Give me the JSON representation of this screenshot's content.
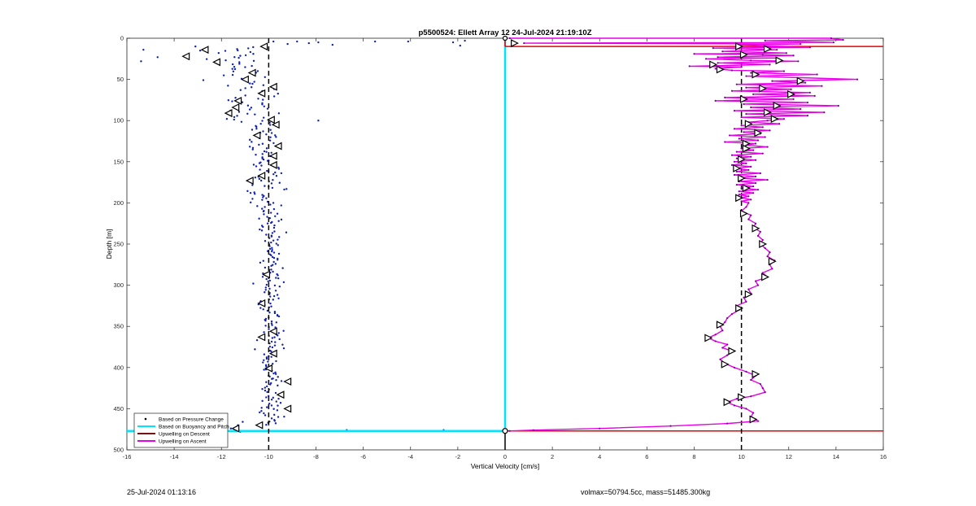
{
  "chart_data": {
    "type": "scatter",
    "title": "p5500524: Ellett Array 12 24-Jul-2024 21:19:10Z",
    "xlabel": "Vertical Velocity [cm/s]",
    "ylabel": "Depth [m]",
    "xlim": [
      -16,
      16
    ],
    "ylim": [
      0,
      500
    ],
    "y_reversed": true,
    "grid": false,
    "x_ticks": [
      -16,
      -14,
      -12,
      -10,
      -8,
      -6,
      -4,
      -2,
      0,
      2,
      4,
      6,
      8,
      10,
      12,
      14,
      16
    ],
    "y_ticks": [
      0,
      50,
      100,
      150,
      200,
      250,
      300,
      350,
      400,
      450,
      500
    ],
    "legend_position": "bottom-left",
    "legend": [
      {
        "label": "Based on Pressure Change",
        "style": "dot",
        "color": "#000000"
      },
      {
        "label": "Based on Buoyancy and Pitch",
        "style": "line",
        "color": "#00e5ff"
      },
      {
        "label": "Upwelling on Descent",
        "style": "line",
        "color": "#7a1010"
      },
      {
        "label": "Upwelling on Ascent",
        "style": "line",
        "color": "#e600e6"
      }
    ],
    "reference_lines": [
      {
        "x": -10,
        "style": "dashed",
        "color": "#000000"
      },
      {
        "x": 10,
        "style": "dashed",
        "color": "#000000"
      },
      {
        "x": 0,
        "style": "solid",
        "color": "#000000",
        "ymin": 475,
        "ymax": 500
      }
    ],
    "red_lines": [
      {
        "y": 10,
        "x0": 0,
        "x1": 16
      },
      {
        "y": 477,
        "x0": 0,
        "x1": 16
      }
    ],
    "buoyancy_pitch": {
      "color": "#00e5ff",
      "points": [
        [
          0,
          0
        ],
        [
          0,
          477
        ],
        [
          -16,
          477
        ]
      ]
    },
    "descent_outliers": [
      [
        -15.3,
        14
      ],
      [
        -15.4,
        28
      ],
      [
        -14.7,
        23
      ],
      [
        -13.1,
        10
      ],
      [
        -12.9,
        15
      ],
      [
        -12.6,
        13
      ],
      [
        -9.8,
        4
      ],
      [
        -9.2,
        7
      ],
      [
        -8.8,
        4
      ],
      [
        -8.3,
        6
      ],
      [
        -7.9,
        5
      ],
      [
        -7.3,
        8
      ],
      [
        -5.5,
        4
      ],
      [
        -4.1,
        4
      ],
      [
        -1.7,
        3
      ],
      [
        -2.2,
        5
      ],
      [
        -1.9,
        9
      ],
      [
        -7.9,
        100
      ],
      [
        -6.7,
        476
      ],
      [
        -2.6,
        476
      ],
      [
        -1.9,
        477
      ],
      [
        -11.1,
        466
      ],
      [
        -11.3,
        470
      ],
      [
        -11.6,
        474
      ],
      [
        -11.2,
        478
      ]
    ],
    "descent_markers": [
      [
        -10.2,
        10
      ],
      [
        -12.7,
        14
      ],
      [
        -13.5,
        22
      ],
      [
        -12.2,
        29
      ],
      [
        -10.7,
        42
      ],
      [
        -11.0,
        50
      ],
      [
        -9.8,
        59
      ],
      [
        -10.3,
        67
      ],
      [
        -11.3,
        76
      ],
      [
        -11.4,
        84
      ],
      [
        -11.7,
        91
      ],
      [
        -9.9,
        99
      ],
      [
        -9.7,
        105
      ],
      [
        -10.5,
        118
      ],
      [
        -9.6,
        131
      ],
      [
        -9.8,
        143
      ],
      [
        -9.8,
        154
      ],
      [
        -10.3,
        167
      ],
      [
        -10.8,
        173
      ],
      [
        -10.1,
        287
      ],
      [
        -10.3,
        322
      ],
      [
        -9.8,
        356
      ],
      [
        -10.3,
        363
      ],
      [
        -9.8,
        383
      ],
      [
        -10.0,
        401
      ],
      [
        -9.2,
        417
      ],
      [
        -9.5,
        433
      ],
      [
        -9.2,
        450
      ],
      [
        -10.4,
        470
      ],
      [
        -11.4,
        474
      ]
    ],
    "ascent_markers": [
      [
        0.4,
        6
      ],
      [
        9.9,
        10
      ],
      [
        11.1,
        13
      ],
      [
        10.1,
        20
      ],
      [
        11.6,
        27
      ],
      [
        8.8,
        32
      ],
      [
        9.1,
        38
      ],
      [
        10.6,
        44
      ],
      [
        12.5,
        52
      ],
      [
        10.9,
        61
      ],
      [
        12.1,
        68
      ],
      [
        10.1,
        74
      ],
      [
        11.5,
        82
      ],
      [
        11.1,
        90
      ],
      [
        11.4,
        98
      ],
      [
        10.3,
        104
      ],
      [
        10.7,
        115
      ],
      [
        10.2,
        128
      ],
      [
        10.2,
        134
      ],
      [
        10.0,
        147
      ],
      [
        9.8,
        158
      ],
      [
        10.0,
        170
      ],
      [
        10.2,
        182
      ],
      [
        9.9,
        194
      ],
      [
        10.1,
        213
      ],
      [
        10.6,
        231
      ],
      [
        10.9,
        250
      ],
      [
        11.3,
        271
      ],
      [
        11.0,
        290
      ],
      [
        10.3,
        311
      ],
      [
        9.9,
        328
      ],
      [
        9.1,
        348
      ],
      [
        8.6,
        364
      ],
      [
        9.6,
        380
      ],
      [
        9.3,
        396
      ],
      [
        10.6,
        408
      ],
      [
        10.0,
        436
      ],
      [
        9.4,
        442
      ],
      [
        10.5,
        463
      ],
      [
        0,
        477
      ]
    ],
    "ascent_profile": [
      [
        0.2,
        0
      ],
      [
        13.8,
        0
      ],
      [
        14.3,
        2
      ],
      [
        11.0,
        3
      ],
      [
        13.9,
        5
      ],
      [
        0.8,
        6
      ],
      [
        12.5,
        7
      ],
      [
        9.8,
        8
      ],
      [
        12.9,
        11
      ],
      [
        8.8,
        12
      ],
      [
        11.5,
        14
      ],
      [
        9.2,
        16
      ],
      [
        11.9,
        18
      ],
      [
        8.0,
        19
      ],
      [
        10.9,
        20
      ],
      [
        12.2,
        21
      ],
      [
        9.0,
        23
      ],
      [
        11.5,
        24
      ],
      [
        8.5,
        25
      ],
      [
        10.4,
        27
      ],
      [
        12.4,
        28
      ],
      [
        9.0,
        30
      ],
      [
        11.2,
        32
      ],
      [
        7.8,
        34
      ],
      [
        10.0,
        35
      ],
      [
        8.9,
        37
      ],
      [
        9.6,
        39
      ],
      [
        11.8,
        40
      ],
      [
        10.4,
        42
      ],
      [
        13.2,
        44
      ],
      [
        10.2,
        46
      ],
      [
        14.9,
        50
      ],
      [
        11.3,
        52
      ],
      [
        12.7,
        54
      ],
      [
        9.8,
        56
      ],
      [
        13.4,
        58
      ],
      [
        10.2,
        60
      ],
      [
        12.1,
        62
      ],
      [
        9.6,
        64
      ],
      [
        12.9,
        66
      ],
      [
        10.5,
        68
      ],
      [
        13.1,
        70
      ],
      [
        9.3,
        72
      ],
      [
        12.2,
        74
      ],
      [
        8.9,
        76
      ],
      [
        12.8,
        78
      ],
      [
        10.1,
        80
      ],
      [
        14.1,
        82
      ],
      [
        10.4,
        84
      ],
      [
        12.5,
        86
      ],
      [
        9.7,
        88
      ],
      [
        13.5,
        90
      ],
      [
        10.2,
        92
      ],
      [
        12.8,
        94
      ],
      [
        10.0,
        96
      ],
      [
        11.8,
        98
      ],
      [
        11.1,
        100
      ],
      [
        10.3,
        102
      ],
      [
        11.6,
        104
      ],
      [
        10.0,
        106
      ],
      [
        10.9,
        108
      ],
      [
        9.7,
        110
      ],
      [
        11.2,
        112
      ],
      [
        10.1,
        114
      ],
      [
        10.8,
        116
      ],
      [
        9.5,
        118
      ],
      [
        11.0,
        120
      ],
      [
        9.9,
        122
      ],
      [
        10.7,
        124
      ],
      [
        9.3,
        126
      ],
      [
        10.6,
        128
      ],
      [
        10.2,
        130
      ],
      [
        11.1,
        132
      ],
      [
        10.0,
        134
      ],
      [
        10.5,
        136
      ],
      [
        9.8,
        138
      ],
      [
        10.9,
        140
      ],
      [
        9.6,
        142
      ],
      [
        10.4,
        144
      ],
      [
        9.8,
        146
      ],
      [
        10.6,
        148
      ],
      [
        9.7,
        150
      ],
      [
        10.2,
        152
      ],
      [
        9.6,
        154
      ],
      [
        10.4,
        156
      ],
      [
        9.7,
        158
      ],
      [
        10.3,
        160
      ],
      [
        9.8,
        162
      ],
      [
        10.8,
        164
      ],
      [
        9.7,
        166
      ],
      [
        10.6,
        168
      ],
      [
        9.9,
        170
      ],
      [
        11.1,
        172
      ],
      [
        9.9,
        174
      ],
      [
        10.6,
        176
      ],
      [
        9.8,
        178
      ],
      [
        10.5,
        180
      ],
      [
        10.0,
        182
      ],
      [
        10.7,
        184
      ],
      [
        9.9,
        186
      ],
      [
        10.5,
        188
      ],
      [
        9.9,
        190
      ],
      [
        10.3,
        192
      ],
      [
        10.0,
        194
      ],
      [
        10.4,
        196
      ],
      [
        10.0,
        198
      ],
      [
        10.3,
        200
      ],
      [
        10.2,
        205
      ],
      [
        10.0,
        210
      ],
      [
        10.4,
        215
      ],
      [
        10.3,
        220
      ],
      [
        10.6,
        225
      ],
      [
        10.5,
        230
      ],
      [
        10.8,
        235
      ],
      [
        10.7,
        240
      ],
      [
        10.9,
        245
      ],
      [
        10.8,
        250
      ],
      [
        11.0,
        255
      ],
      [
        11.2,
        260
      ],
      [
        11.1,
        265
      ],
      [
        11.4,
        270
      ],
      [
        11.2,
        275
      ],
      [
        11.3,
        280
      ],
      [
        10.9,
        285
      ],
      [
        11.1,
        290
      ],
      [
        10.6,
        295
      ],
      [
        10.7,
        300
      ],
      [
        10.3,
        305
      ],
      [
        10.4,
        310
      ],
      [
        10.1,
        315
      ],
      [
        10.2,
        320
      ],
      [
        9.8,
        325
      ],
      [
        9.9,
        330
      ],
      [
        9.6,
        335
      ],
      [
        9.4,
        340
      ],
      [
        9.3,
        345
      ],
      [
        9.1,
        350
      ],
      [
        9.2,
        355
      ],
      [
        8.9,
        360
      ],
      [
        8.6,
        364
      ],
      [
        8.9,
        368
      ],
      [
        9.4,
        372
      ],
      [
        9.2,
        376
      ],
      [
        9.6,
        380
      ],
      [
        9.4,
        385
      ],
      [
        9.1,
        390
      ],
      [
        9.3,
        395
      ],
      [
        9.7,
        400
      ],
      [
        10.2,
        405
      ],
      [
        10.6,
        410
      ],
      [
        10.4,
        415
      ],
      [
        10.8,
        420
      ],
      [
        10.9,
        425
      ],
      [
        11.0,
        430
      ],
      [
        10.4,
        435
      ],
      [
        9.8,
        438
      ],
      [
        9.4,
        442
      ],
      [
        9.7,
        446
      ],
      [
        10.2,
        450
      ],
      [
        10.5,
        455
      ],
      [
        10.4,
        460
      ],
      [
        10.7,
        465
      ],
      [
        9.4,
        468
      ],
      [
        7.0,
        471
      ],
      [
        4.0,
        474
      ],
      [
        1.2,
        476
      ],
      [
        0.2,
        477
      ]
    ]
  },
  "footer": {
    "timestamp": "25-Jul-2024 01:13:16",
    "stats": "volmax=50794.5cc, mass=51485.300kg"
  }
}
